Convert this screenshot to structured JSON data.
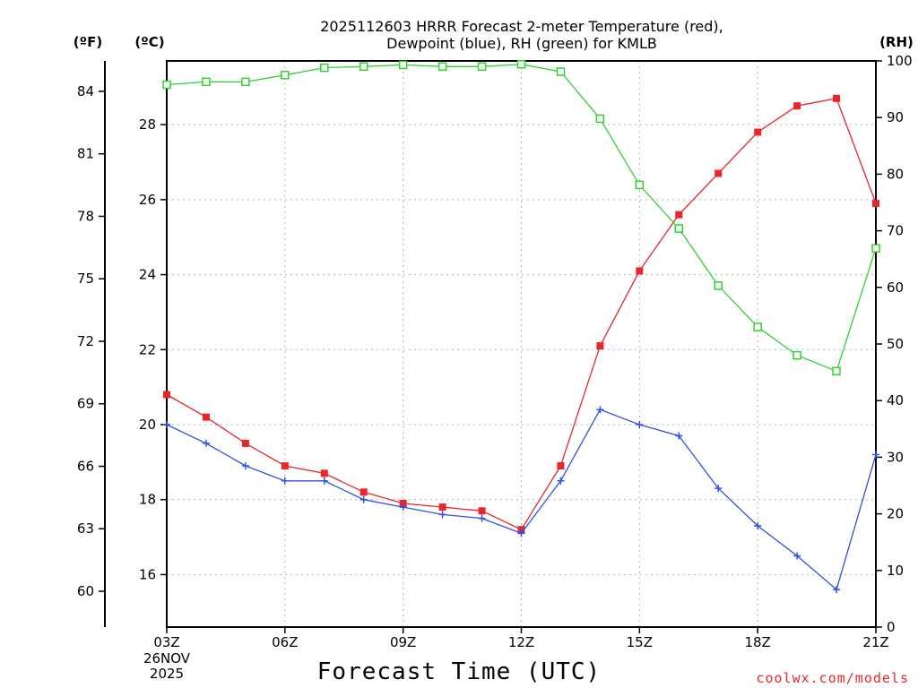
{
  "chart_data": {
    "type": "line",
    "title": "2025112603 HRRR Forecast 2-meter Temperature (red),",
    "subtitle": "Dewpoint (blue), RH (green) for KMLB",
    "xlabel": "Forecast Time (UTC)",
    "credit": "coolwx.com/models",
    "date_line1": "26NOV",
    "date_line2": "2025",
    "x": [
      3,
      4,
      5,
      6,
      7,
      8,
      9,
      10,
      11,
      12,
      13,
      14,
      15,
      16,
      17,
      18,
      19,
      20,
      21
    ],
    "xlim": [
      3,
      21
    ],
    "xticks": [
      3,
      6,
      9,
      12,
      15,
      18,
      21
    ],
    "xtick_labels": [
      "03Z",
      "06Z",
      "09Z",
      "12Z",
      "15Z",
      "18Z",
      "21Z"
    ],
    "left_unit_f": "(ºF)",
    "left_unit_c": "(ºC)",
    "right_unit": "(RH)",
    "ylim_c": [
      14.6,
      29.7
    ],
    "yticks_c": [
      16,
      18,
      20,
      22,
      24,
      26,
      28
    ],
    "yticks_f": [
      60,
      63,
      66,
      69,
      72,
      75,
      78,
      81,
      84
    ],
    "ylim_rh": [
      0,
      100
    ],
    "yticks_rh": [
      0,
      10,
      20,
      30,
      40,
      50,
      60,
      70,
      80,
      90,
      100
    ],
    "series": [
      {
        "name": "Temperature",
        "unit": "C",
        "axis": "c",
        "color": "#e8262b",
        "marker": "filled-square",
        "values": [
          20.8,
          20.2,
          19.5,
          18.9,
          18.7,
          18.2,
          17.9,
          17.8,
          17.7,
          17.2,
          18.9,
          22.1,
          24.1,
          25.6,
          26.7,
          27.8,
          28.5,
          28.7,
          25.9
        ]
      },
      {
        "name": "Dewpoint",
        "unit": "C",
        "axis": "c",
        "color": "#2d52e5",
        "marker": "plus",
        "values": [
          20.0,
          19.5,
          18.9,
          18.5,
          18.5,
          18.0,
          17.8,
          17.6,
          17.5,
          17.1,
          18.5,
          20.4,
          20.0,
          19.7,
          18.3,
          17.3,
          16.5,
          15.6,
          19.2
        ]
      },
      {
        "name": "RH",
        "unit": "%",
        "axis": "rh",
        "color": "#2ed32e",
        "marker": "open-square",
        "values": [
          95.8,
          96.3,
          96.3,
          97.5,
          98.8,
          99.0,
          99.3,
          99.0,
          99.0,
          99.4,
          98.1,
          89.8,
          78.1,
          70.4,
          60.3,
          53.0,
          48.0,
          45.2,
          66.9
        ]
      }
    ]
  }
}
